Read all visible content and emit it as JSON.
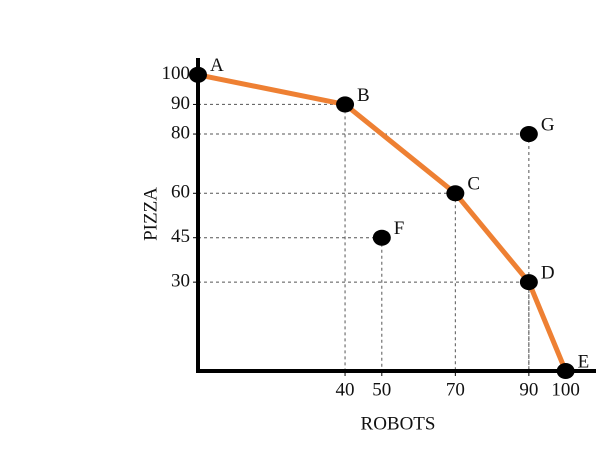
{
  "chart_data": {
    "type": "scatter",
    "x_label": "ROBOTS",
    "y_label": "PIZZA",
    "xlim": [
      0,
      105
    ],
    "ylim": [
      0,
      105
    ],
    "xticks": [
      40,
      50,
      70,
      90,
      100
    ],
    "yticks": [
      30,
      45,
      60,
      80,
      90,
      100
    ],
    "curve": {
      "x": [
        0,
        40,
        70,
        90,
        100
      ],
      "values": [
        100,
        90,
        60,
        30,
        0
      ],
      "color": "#ee8033"
    },
    "points": {
      "labels": [
        "A",
        "B",
        "C",
        "D",
        "E",
        "F",
        "G"
      ],
      "x": [
        0,
        40,
        70,
        90,
        100,
        50,
        90
      ],
      "values": [
        100,
        90,
        60,
        30,
        0,
        45,
        80
      ],
      "color": "#000000"
    }
  }
}
